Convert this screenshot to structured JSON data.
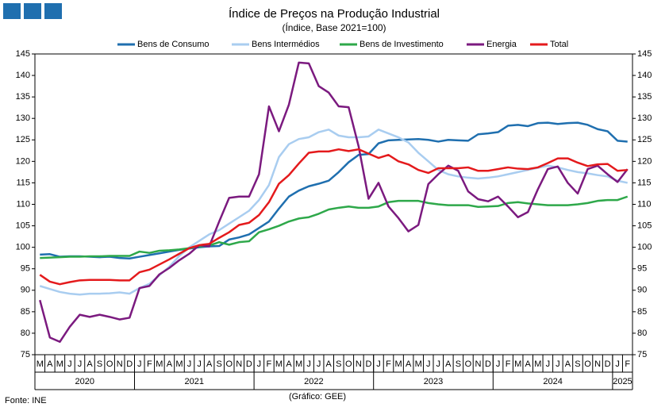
{
  "chart_data": {
    "type": "line",
    "title": "Índice de Preços na Produção Industrial",
    "subtitle": "(Índice, Base 2021=100)",
    "source": "Fonte: INE",
    "credit": "(Gráfico: GEE)",
    "years": [
      {
        "year": "2020",
        "months": [
          "M",
          "A",
          "M",
          "J",
          "J",
          "A",
          "S",
          "O",
          "N",
          "D"
        ]
      },
      {
        "year": "2021",
        "months": [
          "J",
          "F",
          "M",
          "A",
          "M",
          "J",
          "J",
          "A",
          "S",
          "O",
          "N",
          "D"
        ]
      },
      {
        "year": "2022",
        "months": [
          "J",
          "F",
          "M",
          "A",
          "M",
          "J",
          "J",
          "A",
          "S",
          "O",
          "N",
          "D"
        ]
      },
      {
        "year": "2023",
        "months": [
          "J",
          "F",
          "M",
          "A",
          "M",
          "J",
          "J",
          "A",
          "S",
          "O",
          "N",
          "D"
        ]
      },
      {
        "year": "2024",
        "months": [
          "J",
          "F",
          "M",
          "A",
          "M",
          "J",
          "J",
          "A",
          "S",
          "O",
          "N",
          "D"
        ]
      },
      {
        "year": "2025",
        "months": [
          "J",
          "F"
        ]
      }
    ],
    "ylim": [
      75,
      145
    ],
    "yticks": [
      75,
      80,
      85,
      90,
      95,
      100,
      105,
      110,
      115,
      120,
      125,
      130,
      135,
      140,
      145
    ],
    "grid": false,
    "legend": "top",
    "series": [
      {
        "name": "Bens de Consumo",
        "color": "#1f6faf",
        "values": [
          98.3,
          98.4,
          97.8,
          97.9,
          97.9,
          97.8,
          97.7,
          97.8,
          97.5,
          97.4,
          97.8,
          98.2,
          98.6,
          99.0,
          99.4,
          99.7,
          100.0,
          100.2,
          100.3,
          101.8,
          102.3,
          103.0,
          104.5,
          106.0,
          109.0,
          111.8,
          113.2,
          114.2,
          114.8,
          115.5,
          117.5,
          119.8,
          121.5,
          121.7,
          124.2,
          124.9,
          125.0,
          125.1,
          125.2,
          125.0,
          124.6,
          125.0,
          124.9,
          124.8,
          126.3,
          126.5,
          126.8,
          128.3,
          128.5,
          128.2,
          128.9,
          129.0,
          128.7,
          128.9,
          129.0,
          128.5,
          127.5,
          127.0,
          124.8,
          124.6
        ]
      },
      {
        "name": "Bens Intermédios",
        "color": "#a9cdf0",
        "values": [
          91.0,
          90.3,
          89.6,
          89.2,
          89.0,
          89.2,
          89.2,
          89.3,
          89.5,
          89.2,
          90.5,
          91.5,
          93.5,
          95.5,
          98.0,
          100.0,
          101.5,
          103.0,
          104.0,
          105.5,
          107.0,
          108.5,
          111.0,
          114.5,
          121.0,
          124.0,
          125.2,
          125.6,
          126.8,
          127.4,
          126.0,
          125.6,
          125.6,
          125.8,
          127.4,
          126.5,
          125.6,
          124.4,
          122.0,
          120.0,
          118.0,
          117.0,
          116.5,
          116.2,
          116.0,
          116.2,
          116.5,
          117.0,
          117.5,
          118.0,
          118.5,
          119.0,
          118.6,
          118.0,
          117.5,
          117.2,
          116.8,
          116.5,
          115.5,
          115.0
        ]
      },
      {
        "name": "Bens de Investimento",
        "color": "#2ea84a",
        "values": [
          97.5,
          97.6,
          97.7,
          97.8,
          97.8,
          97.9,
          97.9,
          98.0,
          98.0,
          98.0,
          99.0,
          98.7,
          99.2,
          99.3,
          99.5,
          99.8,
          100.2,
          100.4,
          101.2,
          100.6,
          101.2,
          101.4,
          103.5,
          104.2,
          105.0,
          106.0,
          106.7,
          107.0,
          107.8,
          108.8,
          109.2,
          109.5,
          109.2,
          109.2,
          109.5,
          110.5,
          110.8,
          110.8,
          110.8,
          110.3,
          110.0,
          109.8,
          109.8,
          109.8,
          109.4,
          109.5,
          109.6,
          110.3,
          110.5,
          110.2,
          110.0,
          109.8,
          109.8,
          109.8,
          110.0,
          110.3,
          110.8,
          111.0,
          111.0,
          111.8
        ]
      },
      {
        "name": "Energia",
        "color": "#7b1a7f",
        "values": [
          87.7,
          79.0,
          78.0,
          81.5,
          84.3,
          83.8,
          84.3,
          83.8,
          83.2,
          83.6,
          90.5,
          91.0,
          93.7,
          95.2,
          97.0,
          98.5,
          100.5,
          100.2,
          106.0,
          111.5,
          111.8,
          111.8,
          117.0,
          132.8,
          127.0,
          133.2,
          143.0,
          142.8,
          137.5,
          136.0,
          132.8,
          132.6,
          123.5,
          111.3,
          115.0,
          109.5,
          106.8,
          103.7,
          105.2,
          114.7,
          117.0,
          119.0,
          117.8,
          113.0,
          111.2,
          110.7,
          111.8,
          109.5,
          107.0,
          108.2,
          113.5,
          118.2,
          118.8,
          115.0,
          112.5,
          118.2,
          119.0,
          117.0,
          115.2,
          118.2
        ]
      },
      {
        "name": "Total",
        "color": "#e41a1c",
        "values": [
          93.6,
          92.0,
          91.4,
          91.9,
          92.3,
          92.4,
          92.4,
          92.4,
          92.3,
          92.3,
          94.2,
          94.8,
          96.0,
          97.2,
          98.5,
          99.8,
          100.5,
          100.8,
          102.2,
          103.5,
          105.2,
          105.7,
          107.5,
          110.5,
          114.8,
          116.8,
          119.5,
          122.0,
          122.3,
          122.3,
          122.8,
          122.4,
          122.8,
          121.8,
          120.8,
          121.5,
          120.0,
          119.3,
          118.0,
          117.3,
          118.4,
          118.4,
          118.4,
          118.6,
          117.8,
          117.8,
          118.2,
          118.6,
          118.3,
          118.2,
          118.6,
          119.6,
          120.7,
          120.7,
          119.7,
          118.9,
          119.3,
          119.4,
          117.8,
          118.0
        ]
      }
    ]
  }
}
